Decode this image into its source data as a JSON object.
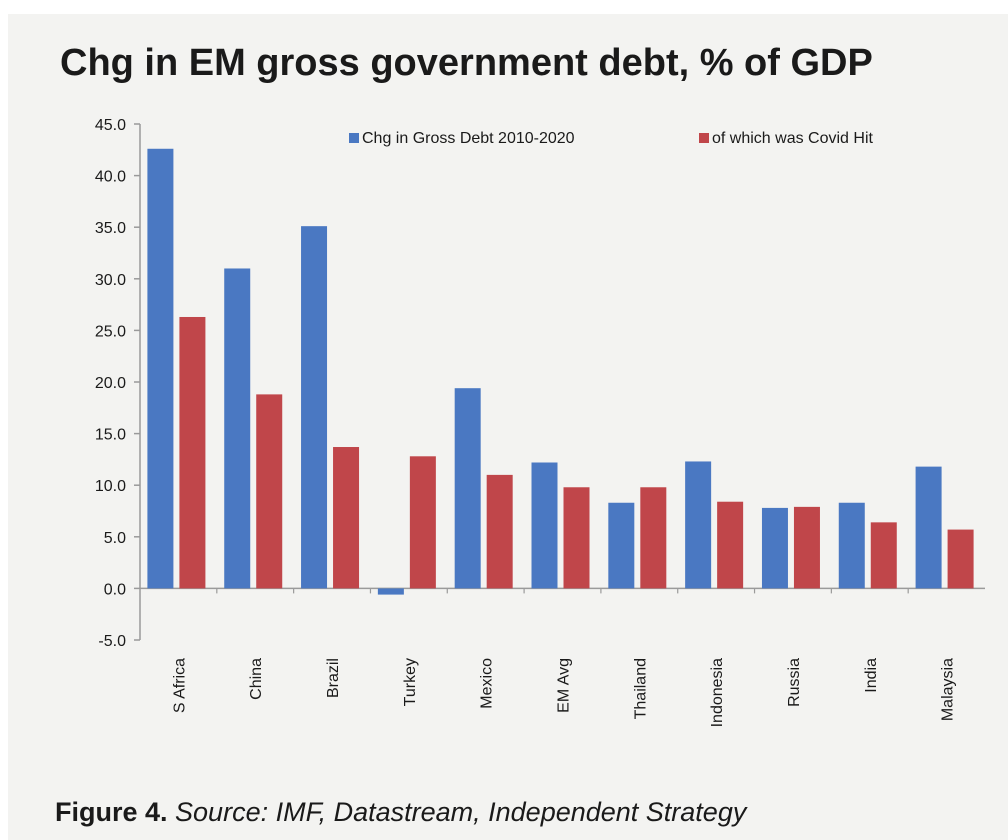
{
  "chart_data": {
    "type": "bar",
    "title": "Chg in EM gross government debt, % of GDP",
    "categories": [
      "S Africa",
      "China",
      "Brazil",
      "Turkey",
      "Mexico",
      "EM Avg",
      "Thailand",
      "Indonesia",
      "Russia",
      "India",
      "Malaysia"
    ],
    "series": [
      {
        "name": "Chg in Gross Debt 2010-2020",
        "color": "#4a78c2",
        "values": [
          42.6,
          31.0,
          35.1,
          -0.6,
          19.4,
          12.2,
          8.3,
          12.3,
          7.8,
          8.3,
          11.8
        ]
      },
      {
        "name": "of which was Covid Hit",
        "color": "#c0464a",
        "values": [
          26.3,
          18.8,
          13.7,
          12.8,
          11.0,
          9.8,
          9.8,
          8.4,
          7.9,
          6.4,
          5.7
        ]
      }
    ],
    "y_ticks": [
      "45.0",
      "40.0",
      "35.0",
      "30.0",
      "25.0",
      "20.0",
      "15.0",
      "10.0",
      "5.0",
      "0.0",
      "-5.0"
    ],
    "ylim": [
      -5,
      45
    ],
    "legend_position": "top-right",
    "grid": false
  },
  "caption": {
    "figure_label": "Figure 4.",
    "source_text": " Source: IMF, Datastream, Independent Strategy"
  }
}
